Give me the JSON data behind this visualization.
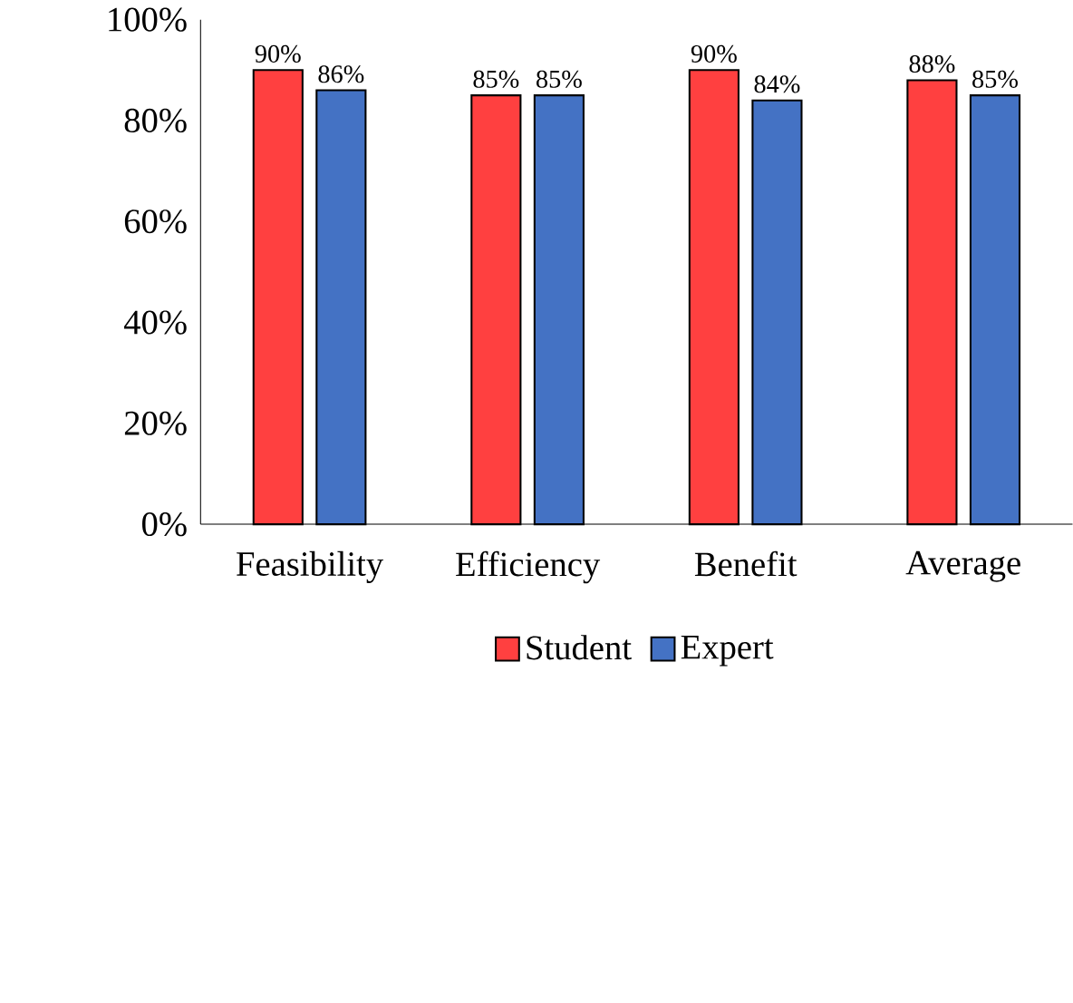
{
  "chart_data": {
    "type": "bar",
    "categories": [
      "Feasibility",
      "Efficiency",
      "Benefit",
      "Average"
    ],
    "series": [
      {
        "name": "Student",
        "color": "#ff4040",
        "values": [
          90,
          85,
          90,
          88
        ],
        "value_labels": [
          "90%",
          "85%",
          "90%",
          "88%"
        ]
      },
      {
        "name": "Expert",
        "color": "#4472c4",
        "values": [
          86,
          85,
          84,
          85
        ],
        "value_labels": [
          "86%",
          "85%",
          "84%",
          "85%"
        ]
      }
    ],
    "ylim": [
      0,
      100
    ],
    "yticks": [
      {
        "value": 0,
        "label": "0%"
      },
      {
        "value": 20,
        "label": "20%"
      },
      {
        "value": 40,
        "label": "40%"
      },
      {
        "value": 60,
        "label": "60%"
      },
      {
        "value": 80,
        "label": "80%"
      },
      {
        "value": 100,
        "label": "100%"
      }
    ],
    "grid": false,
    "legend": "bottom"
  }
}
